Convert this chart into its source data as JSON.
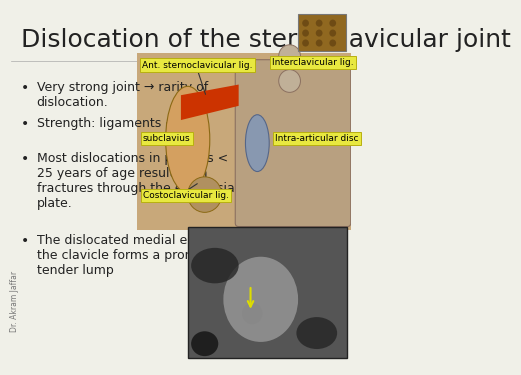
{
  "title": "Dislocation of the sternoclavicular joint",
  "title_fontsize": 18,
  "title_color": "#222222",
  "background_color": "#f0f0e8",
  "bullet_points": [
    "Very strong joint → rarity of\ndislocation.",
    "Strength: ligaments & disc",
    "Most dislocations in persons <\n25 years of age result from\nfractures through the epiphysial\nplate.",
    "The dislocated medial end of\nthe clavicle forms a prominent\ntender lump"
  ],
  "bullet_fontsize": 9,
  "bullet_color": "#222222",
  "watermark": "Dr. Akram Jaffar"
}
